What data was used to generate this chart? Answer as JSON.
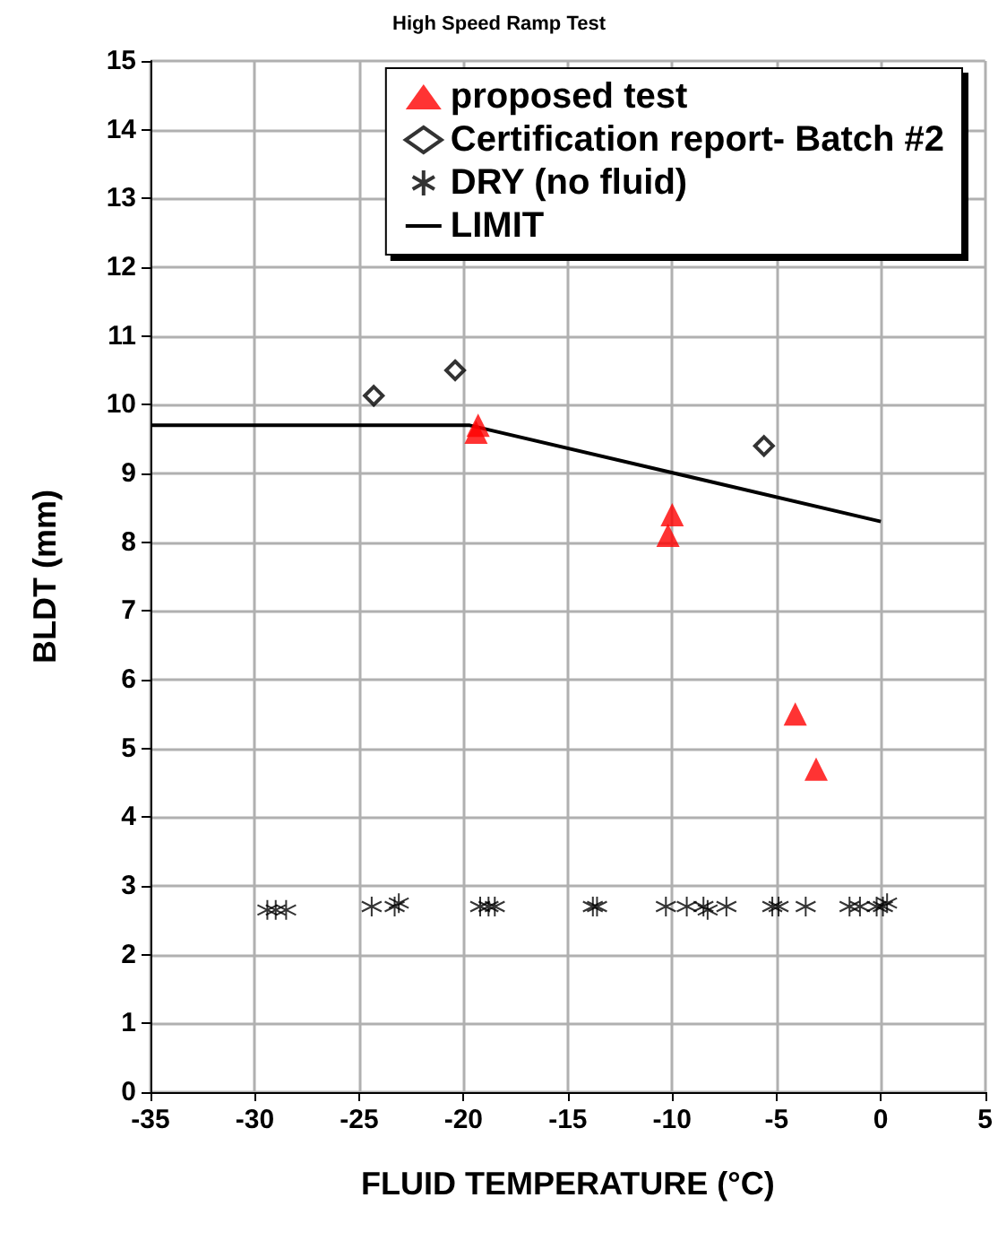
{
  "chart_data": {
    "type": "scatter",
    "title": "High Speed Ramp Test",
    "xlabel": "FLUID TEMPERATURE (°C)",
    "ylabel": "BLDT (mm)",
    "xlim": [
      -35,
      5
    ],
    "xticks": [
      -35,
      -30,
      -25,
      -20,
      -15,
      -10,
      -5,
      0,
      5
    ],
    "ylim": [
      0,
      15
    ],
    "yticks": [
      0,
      1,
      2,
      3,
      4,
      5,
      6,
      7,
      8,
      9,
      10,
      11,
      12,
      13,
      14,
      15
    ],
    "grid": true,
    "legend": "top right",
    "series": [
      {
        "name": "proposed test",
        "color": "#ff0000",
        "marker": "triangle",
        "x": [
          -19.4,
          -19.3,
          -10.0,
          -10.2,
          -4.1,
          -3.1
        ],
        "values": [
          9.6,
          9.7,
          8.4,
          8.1,
          5.5,
          4.7
        ]
      },
      {
        "name": "Certification report- Batch #2",
        "color": "#000000",
        "marker": "diamond",
        "x": [
          -24.3,
          -20.4,
          -5.6
        ],
        "values": [
          10.13,
          10.5,
          9.4
        ]
      },
      {
        "name": "DRY (no fluid)",
        "color": "#000000",
        "marker": "cross",
        "x": [
          -29.4,
          -29.0,
          -28.5,
          -24.4,
          -23.3,
          -23.1,
          -19.2,
          -18.8,
          -18.5,
          -13.8,
          -13.6,
          -10.3,
          -9.3,
          -8.5,
          -8.3,
          -7.4,
          -5.2,
          -4.9,
          -3.6,
          -1.5,
          -1.0,
          -0.2,
          0.1,
          0.3
        ],
        "values": [
          2.65,
          2.65,
          2.65,
          2.7,
          2.7,
          2.75,
          2.7,
          2.7,
          2.7,
          2.7,
          2.7,
          2.7,
          2.7,
          2.7,
          2.65,
          2.7,
          2.7,
          2.7,
          2.7,
          2.7,
          2.7,
          2.7,
          2.7,
          2.75
        ]
      },
      {
        "name": "LIMIT",
        "type": "line",
        "color": "#000000",
        "marker": "none",
        "line_style": "solid",
        "x": [
          -35,
          -19.7,
          0
        ],
        "values": [
          9.7,
          9.7,
          8.3
        ]
      }
    ]
  }
}
